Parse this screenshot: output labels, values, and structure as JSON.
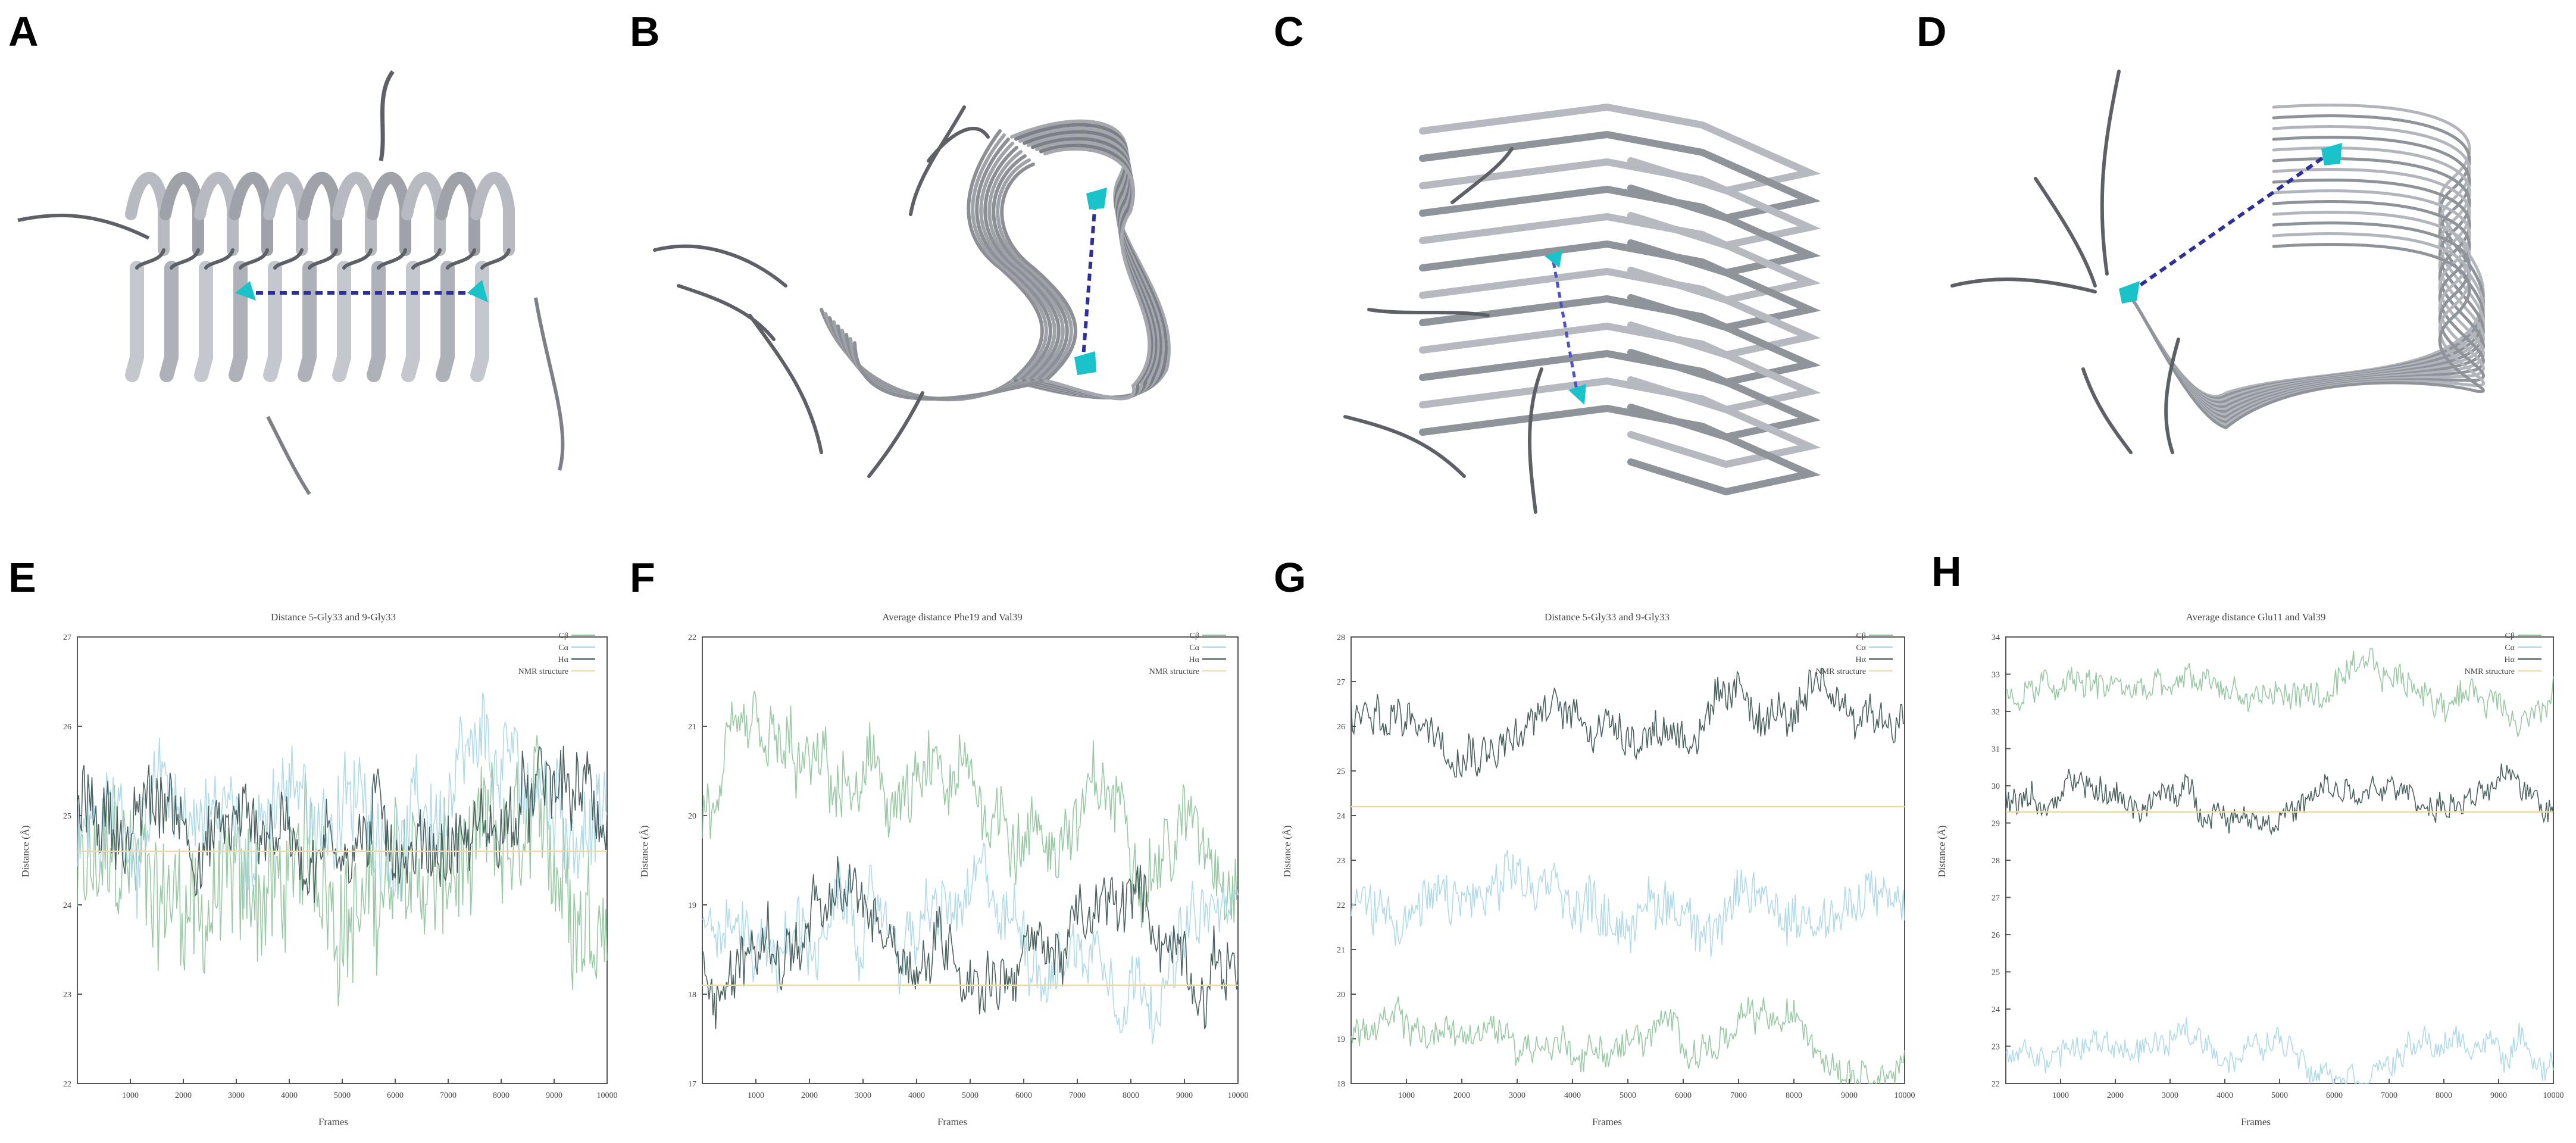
{
  "figure": {
    "panel_labels": [
      "A",
      "B",
      "C",
      "D",
      "E",
      "F",
      "G",
      "H"
    ]
  },
  "colors": {
    "ribbon": "#9fa3a9",
    "ribbon_dark": "#5d6066",
    "cyan_atom": "#19c3c9",
    "distance_line": "#2d2f9a",
    "series_green": "#8ec29a",
    "series_blue": "#a9d6e6",
    "series_dark": "#37504f",
    "nmr_line": "#ecd9a8"
  },
  "chart_data": [
    {
      "panel": "E",
      "type": "line",
      "title": "Distance 5-Gly33 and 9-Gly33",
      "xlabel": "Frames",
      "ylabel": "Distance (Å)",
      "xlim": [
        0,
        10000
      ],
      "ylim": [
        22,
        27
      ],
      "xticks": [
        "1000",
        "2000",
        "3000",
        "4000",
        "5000",
        "6000",
        "7000",
        "8000",
        "9000",
        "10000"
      ],
      "yticks": [
        "22",
        "23",
        "24",
        "25",
        "26",
        "27"
      ],
      "legend": [
        "Cβ",
        "Cα",
        "Hα",
        "NMR structure"
      ],
      "series": [
        {
          "name": "Cβ",
          "mean": 24.2,
          "noise": 0.65,
          "color": "#8ec29a"
        },
        {
          "name": "Cα",
          "mean": 25.0,
          "noise": 0.4,
          "color": "#a9d6e6"
        },
        {
          "name": "Hα",
          "mean": 24.95,
          "noise": 0.3,
          "color": "#37504f"
        }
      ],
      "nmr_value": 24.6
    },
    {
      "panel": "F",
      "type": "line",
      "title": "Average distance Phe19 and Val39",
      "xlabel": "Frames",
      "ylabel": "Distance (Å)",
      "xlim": [
        0,
        10000
      ],
      "ylim": [
        17,
        22
      ],
      "xticks": [
        "1000",
        "2000",
        "3000",
        "4000",
        "5000",
        "6000",
        "7000",
        "8000",
        "9000",
        "10000"
      ],
      "yticks": [
        "17",
        "18",
        "19",
        "20",
        "21",
        "22"
      ],
      "legend": [
        "Cβ",
        "Cα",
        "Hα",
        "NMR structure"
      ],
      "series": [
        {
          "name": "Cβ",
          "mean": 20.0,
          "noise": 0.3,
          "color": "#8ec29a"
        },
        {
          "name": "Cα",
          "mean": 18.7,
          "noise": 0.25,
          "color": "#a9d6e6"
        },
        {
          "name": "Hα",
          "mean": 18.65,
          "noise": 0.22,
          "color": "#37504f"
        }
      ],
      "nmr_value": 18.1
    },
    {
      "panel": "G",
      "type": "line",
      "title": "Distance 5-Gly33 and 9-Gly33",
      "xlabel": "Frames",
      "ylabel": "Distance (Å)",
      "xlim": [
        0,
        10000
      ],
      "ylim": [
        18,
        28
      ],
      "xticks": [
        "1000",
        "2000",
        "3000",
        "4000",
        "5000",
        "6000",
        "7000",
        "8000",
        "9000",
        "10000"
      ],
      "yticks": [
        "18",
        "19",
        "20",
        "21",
        "22",
        "23",
        "24",
        "25",
        "26",
        "27",
        "28"
      ],
      "legend": [
        "Cβ",
        "Cα",
        "Hα",
        "NMR structure"
      ],
      "series": [
        {
          "name": "Cβ",
          "mean": 19.0,
          "noise": 0.25,
          "color": "#8ec29a"
        },
        {
          "name": "Cα",
          "mean": 22.0,
          "noise": 0.45,
          "color": "#a9d6e6"
        },
        {
          "name": "Hα",
          "mean": 26.2,
          "noise": 0.35,
          "color": "#37504f"
        }
      ],
      "nmr_value": 24.2
    },
    {
      "panel": "H",
      "type": "line",
      "title": "Average distance Glu11 and Val39",
      "xlabel": "Frames",
      "ylabel": "Distance (Å)",
      "xlim": [
        0,
        10000
      ],
      "ylim": [
        22,
        34
      ],
      "xticks": [
        "1000",
        "2000",
        "3000",
        "4000",
        "5000",
        "6000",
        "7000",
        "8000",
        "9000",
        "10000"
      ],
      "yticks": [
        "22",
        "23",
        "24",
        "25",
        "26",
        "27",
        "28",
        "29",
        "30",
        "31",
        "32",
        "33",
        "34"
      ],
      "legend": [
        "Cβ",
        "Cα",
        "Hα",
        "NMR structure"
      ],
      "series": [
        {
          "name": "Cβ",
          "mean": 32.5,
          "noise": 0.3,
          "color": "#8ec29a"
        },
        {
          "name": "Cα",
          "mean": 23.0,
          "noise": 0.25,
          "color": "#a9d6e6"
        },
        {
          "name": "Hα",
          "mean": 29.6,
          "noise": 0.25,
          "color": "#37504f"
        }
      ],
      "nmr_value": 29.3
    }
  ]
}
